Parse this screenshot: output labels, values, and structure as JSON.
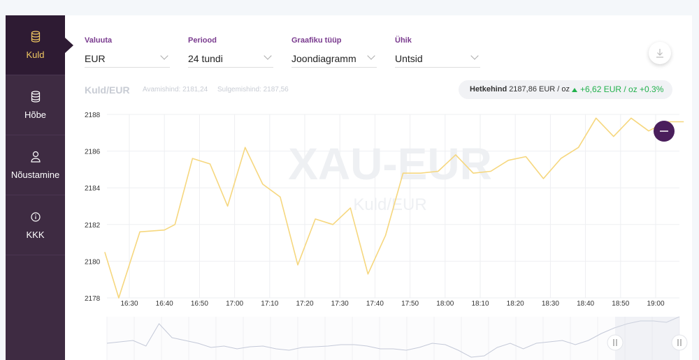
{
  "sidebar": {
    "items": [
      {
        "label": "Kuld",
        "icon": "coins-icon",
        "active": true
      },
      {
        "label": "Hõbe",
        "icon": "coins-icon",
        "active": false
      },
      {
        "label": "Nõustamine",
        "icon": "person-icon",
        "active": false
      },
      {
        "label": "KKK",
        "icon": "info-icon",
        "active": false
      }
    ]
  },
  "controls": {
    "currency": {
      "title": "Valuuta",
      "value": "EUR"
    },
    "period": {
      "title": "Periood",
      "value": "24 tundi"
    },
    "chart_type": {
      "title": "Graafiku tüüp",
      "value": "Joondiagramm"
    },
    "unit": {
      "title": "Ühik",
      "value": "Untsid"
    }
  },
  "header": {
    "symbol": "Kuld/EUR",
    "open": "Avamishind: 2181,24",
    "close": "Sulgemishind: 2187,56"
  },
  "price": {
    "label": "Hetkehind",
    "value": "2187,86 EUR / oz",
    "change": "+6,62 EUR / oz +0.3%"
  },
  "watermark": {
    "main": "XAU-EUR",
    "sub": "Kuld/EUR"
  },
  "colors": {
    "accent": "#7a3b8f",
    "sidebar": "#3e2b42",
    "line": "#f6d77e",
    "positive": "#22b14c",
    "zoom_button": "#4a1e5c"
  },
  "chart_data": {
    "type": "line",
    "title": "",
    "xlabel": "",
    "ylabel": "",
    "ylim": [
      2178,
      2188
    ],
    "yticks": [
      2178,
      2180,
      2182,
      2184,
      2186,
      2188
    ],
    "xticks": [
      "16:30",
      "16:40",
      "16:50",
      "17:00",
      "17:10",
      "17:20",
      "17:30",
      "17:40",
      "17:50",
      "18:00",
      "18:10",
      "18:20",
      "18:30",
      "18:40",
      "18:50",
      "19:00"
    ],
    "grid": true,
    "series": [
      {
        "x": [
          -0.7,
          -0.3,
          0.3,
          1.0,
          1.3,
          1.8,
          2.3,
          2.8,
          3.3,
          3.8,
          4.3,
          4.8,
          5.3,
          5.8,
          6.3,
          6.8,
          7.3,
          7.8,
          8.3,
          8.8,
          9.3,
          9.8,
          10.3,
          10.8,
          11.3,
          11.8,
          12.3,
          12.8,
          13.3,
          13.8,
          14.3,
          14.8,
          15.3,
          15.8
        ],
        "y": [
          2180.5,
          2178.0,
          2181.6,
          2181.7,
          2182.0,
          2185.6,
          2185.3,
          2183.0,
          2186.2,
          2184.2,
          2183.5,
          2179.8,
          2182.3,
          2182.0,
          2182.9,
          2179.3,
          2181.4,
          2184.8,
          2184.8,
          2184.9,
          2185.8,
          2184.8,
          2184.9,
          2185.5,
          2185.7,
          2184.5,
          2185.6,
          2186.2,
          2187.8,
          2186.8,
          2187.8,
          2187.1,
          2187.6,
          2187.6
        ]
      }
    ]
  }
}
